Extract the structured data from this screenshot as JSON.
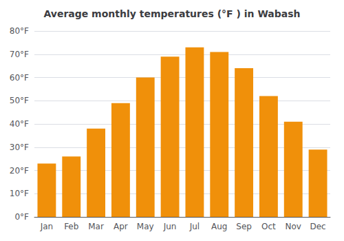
{
  "chart_data": {
    "type": "bar",
    "title": "Average monthly temperatures (°F ) in Wabash",
    "categories": [
      "Jan",
      "Feb",
      "Mar",
      "Apr",
      "May",
      "Jun",
      "Jul",
      "Aug",
      "Sep",
      "Oct",
      "Nov",
      "Dec"
    ],
    "values": [
      23,
      26,
      38,
      49,
      60,
      69,
      73,
      71,
      64,
      52,
      41,
      29
    ],
    "color": "#F0900A",
    "ylim": [
      0,
      80
    ],
    "yticks": [
      {
        "value": 0,
        "label": "0°F"
      },
      {
        "value": 10,
        "label": "10°F"
      },
      {
        "value": 20,
        "label": "20°F"
      },
      {
        "value": 30,
        "label": "30°F"
      },
      {
        "value": 40,
        "label": "40°F"
      },
      {
        "value": 50,
        "label": "50°F"
      },
      {
        "value": 60,
        "label": "60°F"
      },
      {
        "value": 70,
        "label": "70°F"
      },
      {
        "value": 80,
        "label": "80°F"
      }
    ],
    "grid": true
  }
}
